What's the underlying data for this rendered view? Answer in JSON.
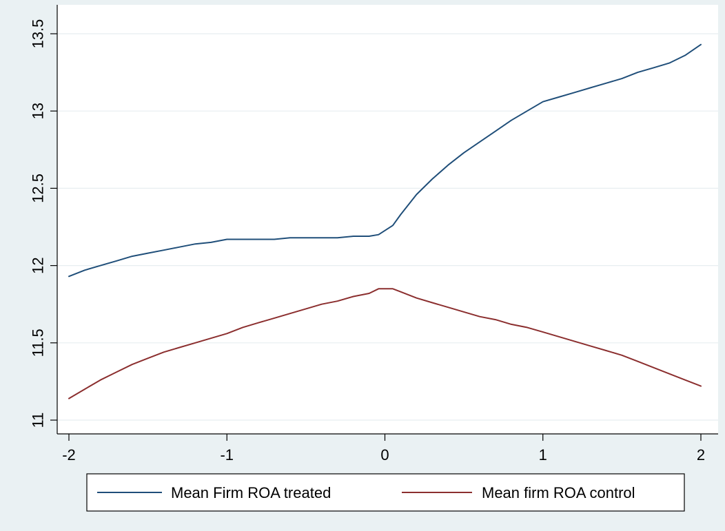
{
  "chart_data": {
    "type": "line",
    "title": "",
    "xlabel": "",
    "ylabel": "",
    "xlim": [
      -2,
      2
    ],
    "ylim": [
      11.05,
      13.55
    ],
    "x_ticks": [
      -2,
      -1,
      0,
      1,
      2
    ],
    "x_tick_labels": [
      "-2",
      "-1",
      "0",
      "1",
      "2"
    ],
    "y_ticks": [
      11,
      11.5,
      12,
      12.5,
      13,
      13.5
    ],
    "y_tick_labels": [
      "11",
      "11.5",
      "12",
      "12.5",
      "13",
      "13.5"
    ],
    "grid": true,
    "legend_position": "bottom",
    "background_color": "#eaf1f3",
    "plot_background_color": "#ffffff",
    "series": [
      {
        "name": "Mean Firm ROA treated",
        "color": "#1f4e79",
        "x": [
          -2,
          -1.9,
          -1.8,
          -1.7,
          -1.6,
          -1.5,
          -1.4,
          -1.3,
          -1.2,
          -1.1,
          -1,
          -0.9,
          -0.8,
          -0.7,
          -0.6,
          -0.5,
          -0.4,
          -0.3,
          -0.2,
          -0.1,
          -0.04,
          0.05,
          0.1,
          0.2,
          0.3,
          0.4,
          0.5,
          0.6,
          0.7,
          0.8,
          0.9,
          1,
          1.1,
          1.2,
          1.3,
          1.4,
          1.5,
          1.6,
          1.7,
          1.8,
          1.9,
          2
        ],
        "y": [
          11.93,
          11.97,
          12.0,
          12.03,
          12.06,
          12.08,
          12.1,
          12.12,
          12.14,
          12.15,
          12.17,
          12.17,
          12.17,
          12.17,
          12.18,
          12.18,
          12.18,
          12.18,
          12.19,
          12.19,
          12.2,
          12.26,
          12.33,
          12.46,
          12.56,
          12.65,
          12.73,
          12.8,
          12.87,
          12.94,
          13.0,
          13.06,
          13.09,
          13.12,
          13.15,
          13.18,
          13.21,
          13.25,
          13.28,
          13.31,
          13.36,
          13.43
        ]
      },
      {
        "name": "Mean firm ROA control",
        "color": "#8b2e2e",
        "x": [
          -2,
          -1.9,
          -1.8,
          -1.7,
          -1.6,
          -1.5,
          -1.4,
          -1.3,
          -1.2,
          -1.1,
          -1,
          -0.9,
          -0.8,
          -0.7,
          -0.6,
          -0.5,
          -0.4,
          -0.3,
          -0.2,
          -0.1,
          -0.04,
          0.05,
          0.1,
          0.2,
          0.3,
          0.4,
          0.5,
          0.6,
          0.7,
          0.8,
          0.9,
          1,
          1.1,
          1.2,
          1.3,
          1.4,
          1.5,
          1.6,
          1.7,
          1.8,
          1.9,
          2
        ],
        "y": [
          11.14,
          11.2,
          11.26,
          11.31,
          11.36,
          11.4,
          11.44,
          11.47,
          11.5,
          11.53,
          11.56,
          11.6,
          11.63,
          11.66,
          11.69,
          11.72,
          11.75,
          11.77,
          11.8,
          11.82,
          11.85,
          11.85,
          11.83,
          11.79,
          11.76,
          11.73,
          11.7,
          11.67,
          11.65,
          11.62,
          11.6,
          11.57,
          11.54,
          11.51,
          11.48,
          11.45,
          11.42,
          11.38,
          11.34,
          11.3,
          11.26,
          11.22
        ]
      }
    ]
  }
}
